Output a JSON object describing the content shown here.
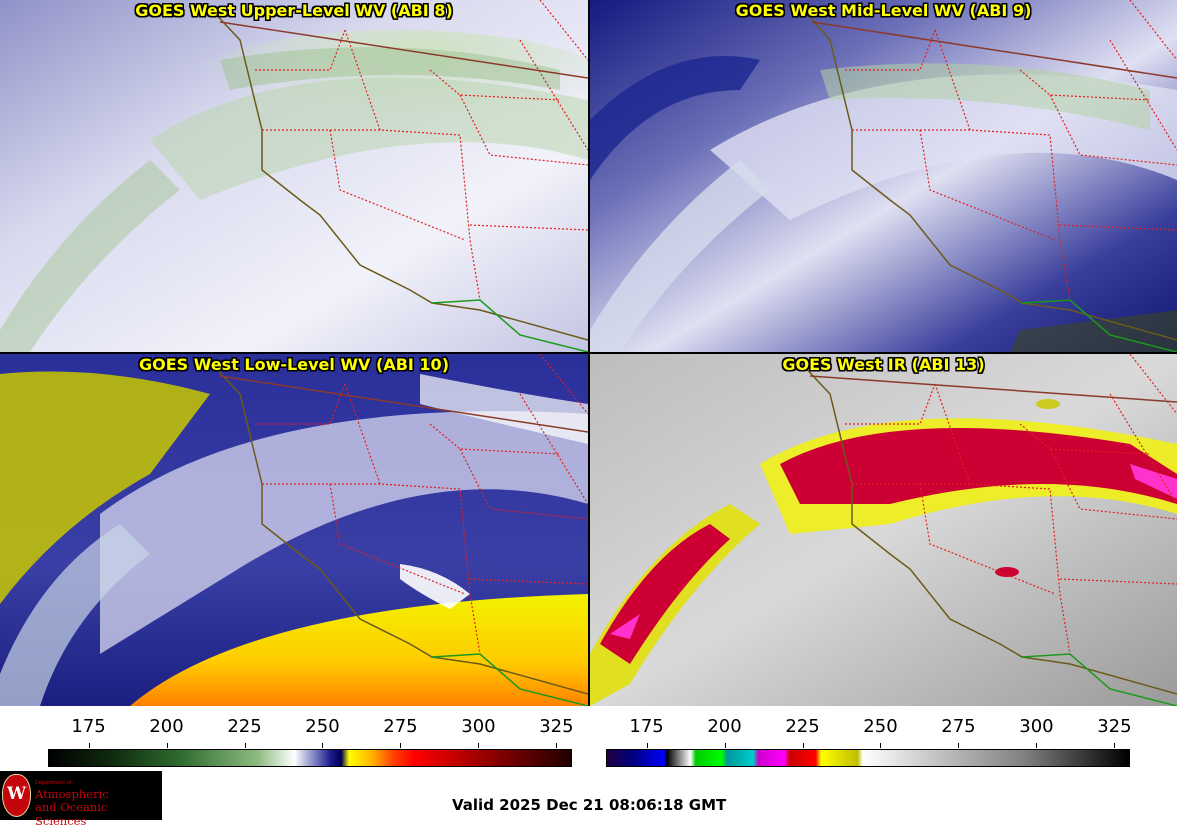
{
  "panels": [
    {
      "title": "GOES West Upper-Level WV (ABI 8)",
      "palette": "wv-upper"
    },
    {
      "title": "GOES West Mid-Level WV (ABI 9)",
      "palette": "wv-mid"
    },
    {
      "title": "GOES West Low-Level WV (ABI 10)",
      "palette": "wv-low"
    },
    {
      "title": "GOES West IR (ABI 13)",
      "palette": "ir"
    }
  ],
  "wv_scale": {
    "labels": [
      "175",
      "200",
      "225",
      "250",
      "275",
      "300",
      "325"
    ],
    "values": [
      175,
      200,
      225,
      250,
      275,
      300,
      325
    ],
    "range": [
      162,
      330
    ],
    "colors": [
      "#000000",
      "#1e5a1e",
      "#6aa35a",
      "#ffffff",
      "#1a1a8c",
      "#000060",
      "#ffff00",
      "#ff8000",
      "#ff0000",
      "#8c0000",
      "#200000"
    ]
  },
  "ir_scale": {
    "labels": [
      "175",
      "200",
      "225",
      "250",
      "275",
      "300",
      "325"
    ],
    "values": [
      175,
      200,
      225,
      250,
      275,
      300,
      325
    ],
    "range": [
      162,
      330
    ]
  },
  "logo": {
    "seal_letter": "W",
    "dept": "Department of",
    "line1": "Atmospheric",
    "line2": "and Oceanic Sciences"
  },
  "valid_text": "Valid 2025 Dec 21 08:06:18 GMT",
  "colors": {
    "title": "#ffff00",
    "border": "#8b3a2a",
    "state_line": "#e02020",
    "coast": "#6b5a1a",
    "mexico": "#1a9a1a"
  }
}
